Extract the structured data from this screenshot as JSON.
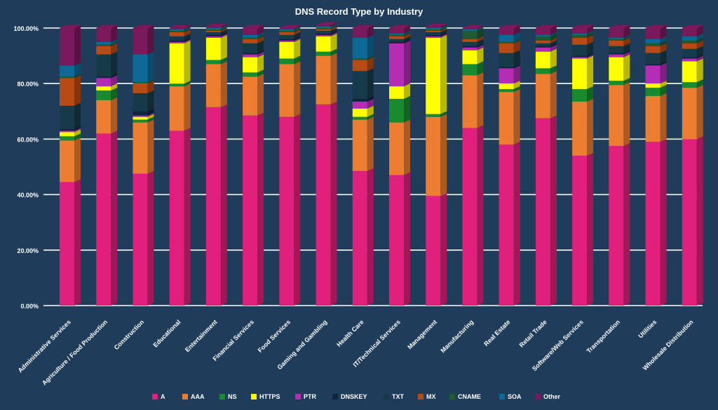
{
  "chart_data": {
    "type": "bar",
    "stacked": true,
    "title": "DNS Record Type by Industry",
    "xlabel": "",
    "ylabel": "",
    "ylim": [
      0,
      100
    ],
    "y_ticks": [
      "0.00%",
      "20.00%",
      "40.00%",
      "60.00%",
      "80.00%",
      "100.00%"
    ],
    "grid": true,
    "legend_position": "bottom",
    "categories": [
      "Administrative Services",
      "Agriculture / Food Production",
      "Construction",
      "Educational",
      "Entertainment",
      "Financial Services",
      "Food Services",
      "Gaming and Gambling",
      "Health Care",
      "IT/Technical Services",
      "Management",
      "Manufacturing",
      "Real Estate",
      "Retail Trade",
      "Software/Web Services",
      "Transportation",
      "Utilities",
      "Wholesale Distribution"
    ],
    "series": [
      {
        "name": "A",
        "color": "#e0207a",
        "values": [
          44.5,
          62,
          47.5,
          63,
          71.5,
          68.5,
          68,
          72.5,
          48.5,
          47,
          39.5,
          64,
          58,
          67.5,
          54,
          57.5,
          59,
          60
        ]
      },
      {
        "name": "AAA",
        "color": "#ed7d31",
        "values": [
          15,
          12,
          18.5,
          16,
          15.5,
          14,
          19,
          17.5,
          18.5,
          19,
          28.5,
          19,
          19,
          16,
          19.5,
          22,
          16.5,
          18.5
        ]
      },
      {
        "name": "NS",
        "color": "#1a8a2e",
        "values": [
          1.5,
          3.5,
          1,
          1,
          1.5,
          1.5,
          2,
          1.5,
          1,
          8.5,
          1,
          4,
          1,
          2,
          4.5,
          1.5,
          3,
          2
        ]
      },
      {
        "name": "HTTPS",
        "color": "#ffff00",
        "values": [
          1.5,
          1.5,
          1,
          14.5,
          8,
          5.5,
          6,
          5.5,
          3,
          4.5,
          27.5,
          5,
          2,
          6,
          11,
          8.5,
          1.5,
          7.5
        ]
      },
      {
        "name": "PTR",
        "color": "#b52cb5",
        "values": [
          0.5,
          3,
          0.5,
          0.5,
          0.5,
          1,
          0.5,
          0.5,
          2.5,
          15.5,
          0.5,
          1,
          5.5,
          1.5,
          0.5,
          1,
          6.5,
          1
        ]
      },
      {
        "name": "DNSKEY",
        "color": "#0f2440",
        "values": [
          0.5,
          0.5,
          1.5,
          0.5,
          0.5,
          0.5,
          0.5,
          0.5,
          1,
          0.5,
          0.5,
          0.5,
          0.5,
          0.5,
          0.5,
          0.5,
          0.5,
          0.5
        ]
      },
      {
        "name": "TXT",
        "color": "#173a48",
        "values": [
          8.5,
          8,
          6.5,
          1.5,
          1,
          3.5,
          1.5,
          1,
          10,
          1,
          1,
          1.5,
          5,
          1,
          4,
          2.5,
          4,
          3
        ]
      },
      {
        "name": "MX",
        "color": "#b84a14",
        "values": [
          10,
          3,
          3.5,
          1.5,
          0.5,
          1.5,
          1,
          0.5,
          4,
          1,
          0.5,
          1,
          3.5,
          1,
          2.5,
          2,
          2.5,
          2
        ]
      },
      {
        "name": "CNAME",
        "color": "#1e5a32",
        "values": [
          0.5,
          0.5,
          0.5,
          0.5,
          0.5,
          0.5,
          0.5,
          0.5,
          0.5,
          0.5,
          0.5,
          3,
          0.5,
          1.5,
          1,
          0.5,
          1,
          1
        ]
      },
      {
        "name": "SOA",
        "color": "#0d6a96",
        "values": [
          4,
          1,
          10,
          0.5,
          0.5,
          1,
          0.5,
          0.5,
          7.5,
          0.5,
          0.5,
          0.5,
          2.5,
          0.5,
          0.5,
          0.5,
          1.5,
          1.5
        ]
      },
      {
        "name": "Other",
        "color": "#7a1a5c",
        "values": [
          13.5,
          5,
          9.5,
          0.5,
          0.5,
          2.5,
          0.5,
          0.5,
          3.5,
          2,
          0.5,
          0.5,
          2.5,
          2.5,
          2,
          3.5,
          4,
          3
        ]
      }
    ]
  }
}
